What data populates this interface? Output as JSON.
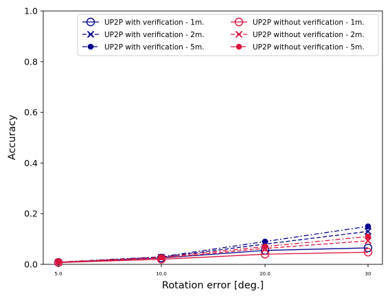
{
  "chart_data": {
    "type": "line",
    "title": "",
    "xlabel": "Rotation error [deg.]",
    "ylabel": "Accuracy",
    "categories": [
      "5.0",
      "10.0",
      "20.0",
      "30"
    ],
    "ylim": [
      0,
      1.0
    ],
    "yticks": [
      "0.0",
      "0.2",
      "0.4",
      "0.6",
      "0.8",
      "1.0"
    ],
    "grid": false,
    "legend_position": "top-right",
    "legend_columns": 2,
    "series": [
      {
        "name": "UP2P with verification - 1m.",
        "values": [
          0.008,
          0.025,
          0.055,
          0.065
        ],
        "color": "#00008b",
        "dash": "solid",
        "marker": "open-circle"
      },
      {
        "name": "UP2P with verification - 2m.",
        "values": [
          0.008,
          0.028,
          0.08,
          0.13
        ],
        "color": "#00008b",
        "dash": "dashed",
        "marker": "x"
      },
      {
        "name": "UP2P with verification - 5m.",
        "values": [
          0.009,
          0.03,
          0.09,
          0.15
        ],
        "color": "#00008b",
        "dash": "dashdot",
        "marker": "filled-circle"
      },
      {
        "name": "UP2P without verification - 1m.",
        "values": [
          0.007,
          0.02,
          0.04,
          0.048
        ],
        "color": "#dc143c",
        "dash": "solid",
        "marker": "open-circle"
      },
      {
        "name": "UP2P without verification - 2m.",
        "values": [
          0.008,
          0.025,
          0.063,
          0.093
        ],
        "color": "#dc143c",
        "dash": "dashed",
        "marker": "x"
      },
      {
        "name": "UP2P without verification - 5m.",
        "values": [
          0.009,
          0.028,
          0.07,
          0.11
        ],
        "color": "#dc143c",
        "dash": "dashdot",
        "marker": "filled-circle"
      }
    ]
  }
}
